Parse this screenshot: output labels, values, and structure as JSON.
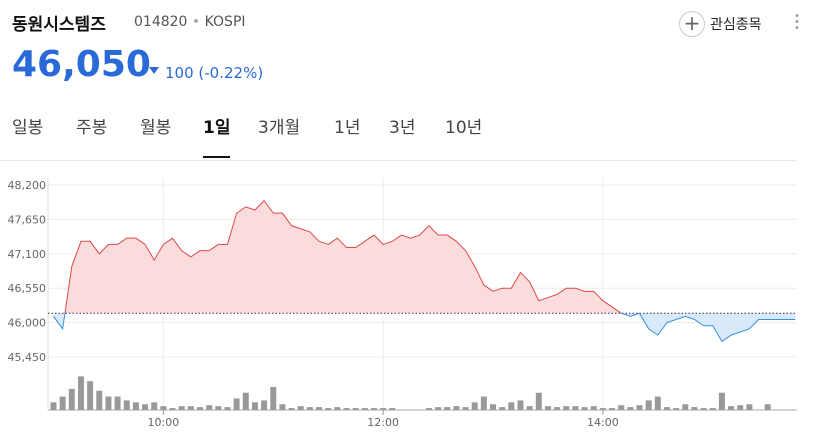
{
  "header": {
    "title": "동원시스템즈",
    "code": "014820",
    "market": "KOSPI",
    "price": "46,050",
    "change": "100",
    "change_pct": "(-0.22%)",
    "watch": "관심종목"
  },
  "tabs": {
    "items": [
      "일봉",
      "주봉",
      "월봉",
      "1일",
      "3개월",
      "1년",
      "3년",
      "10년"
    ],
    "active": 3
  },
  "chart_data": {
    "type": "line",
    "x": [
      540,
      545,
      550,
      555,
      560,
      565,
      570,
      575,
      580,
      585,
      590,
      595,
      600,
      605,
      610,
      615,
      620,
      625,
      630,
      635,
      640,
      645,
      650,
      655,
      660,
      665,
      670,
      675,
      680,
      685,
      690,
      695,
      700,
      705,
      710,
      715,
      720,
      725,
      730,
      735,
      740,
      745,
      750,
      755,
      760,
      765,
      770,
      775,
      780,
      785,
      790,
      795,
      800,
      805,
      810,
      815,
      820,
      825,
      830,
      835,
      840,
      845,
      850,
      855,
      860,
      865,
      870,
      875,
      880,
      885,
      890,
      895,
      900,
      905,
      910,
      915,
      920,
      925,
      930,
      935,
      940,
      945
    ],
    "values": [
      46100,
      45900,
      46900,
      47300,
      47300,
      47100,
      47250,
      47250,
      47350,
      47350,
      47250,
      47000,
      47250,
      47350,
      47150,
      47050,
      47150,
      47150,
      47250,
      47250,
      47750,
      47850,
      47800,
      47950,
      47750,
      47750,
      47550,
      47500,
      47450,
      47300,
      47250,
      47350,
      47200,
      47200,
      47300,
      47400,
      47250,
      47300,
      47400,
      47350,
      47400,
      47550,
      47400,
      47400,
      47300,
      47150,
      46900,
      46600,
      46500,
      46550,
      46550,
      46800,
      46650,
      46350,
      46400,
      46450,
      46550,
      46550,
      46500,
      46500,
      46350,
      46250,
      46150,
      46100,
      46150,
      45900,
      45800,
      46000,
      46050,
      46100,
      46050,
      45950,
      45950,
      45700,
      45800,
      45850,
      45900,
      46050,
      46050,
      46050,
      46050,
      46050
    ],
    "volume": [
      1600,
      2800,
      4400,
      7000,
      6000,
      4000,
      2800,
      2800,
      2000,
      1600,
      1200,
      1600,
      800,
      400,
      800,
      800,
      600,
      1000,
      800,
      600,
      2400,
      3600,
      1600,
      2000,
      4800,
      1200,
      400,
      800,
      600,
      600,
      400,
      600,
      400,
      400,
      400,
      400,
      400,
      400,
      0,
      0,
      0,
      400,
      600,
      600,
      800,
      600,
      1600,
      2800,
      1200,
      600,
      1600,
      2000,
      800,
      3600,
      800,
      600,
      800,
      800,
      600,
      800,
      400,
      400,
      1000,
      600,
      1000,
      2000,
      2800,
      600,
      400,
      1200,
      600,
      400,
      400,
      3600,
      800,
      1000,
      1200,
      0,
      1200,
      0,
      0,
      0
    ],
    "volume_ylim": [
      0,
      10000
    ],
    "previous_close": 46150,
    "xlim": [
      537,
      946
    ],
    "xticks": [
      {
        "value": 600,
        "label": "10:00"
      },
      {
        "value": 720,
        "label": "12:00"
      },
      {
        "value": 840,
        "label": "14:00"
      }
    ],
    "ylim": [
      45450,
      48200
    ],
    "yticks": [
      {
        "value": 45450,
        "label": "45,450"
      },
      {
        "value": 46000,
        "label": "46,000"
      },
      {
        "value": 46550,
        "label": "46,550"
      },
      {
        "value": 47100,
        "label": "47,100"
      },
      {
        "value": 47650,
        "label": "47,650"
      },
      {
        "value": 48200,
        "label": "48,200"
      }
    ],
    "up_color": "#e04848",
    "down_color": "#3c8fe0",
    "up_fill": "#fbdcdc",
    "down_fill": "#d7e9fa",
    "volume_color": "#999999",
    "grid": true
  }
}
